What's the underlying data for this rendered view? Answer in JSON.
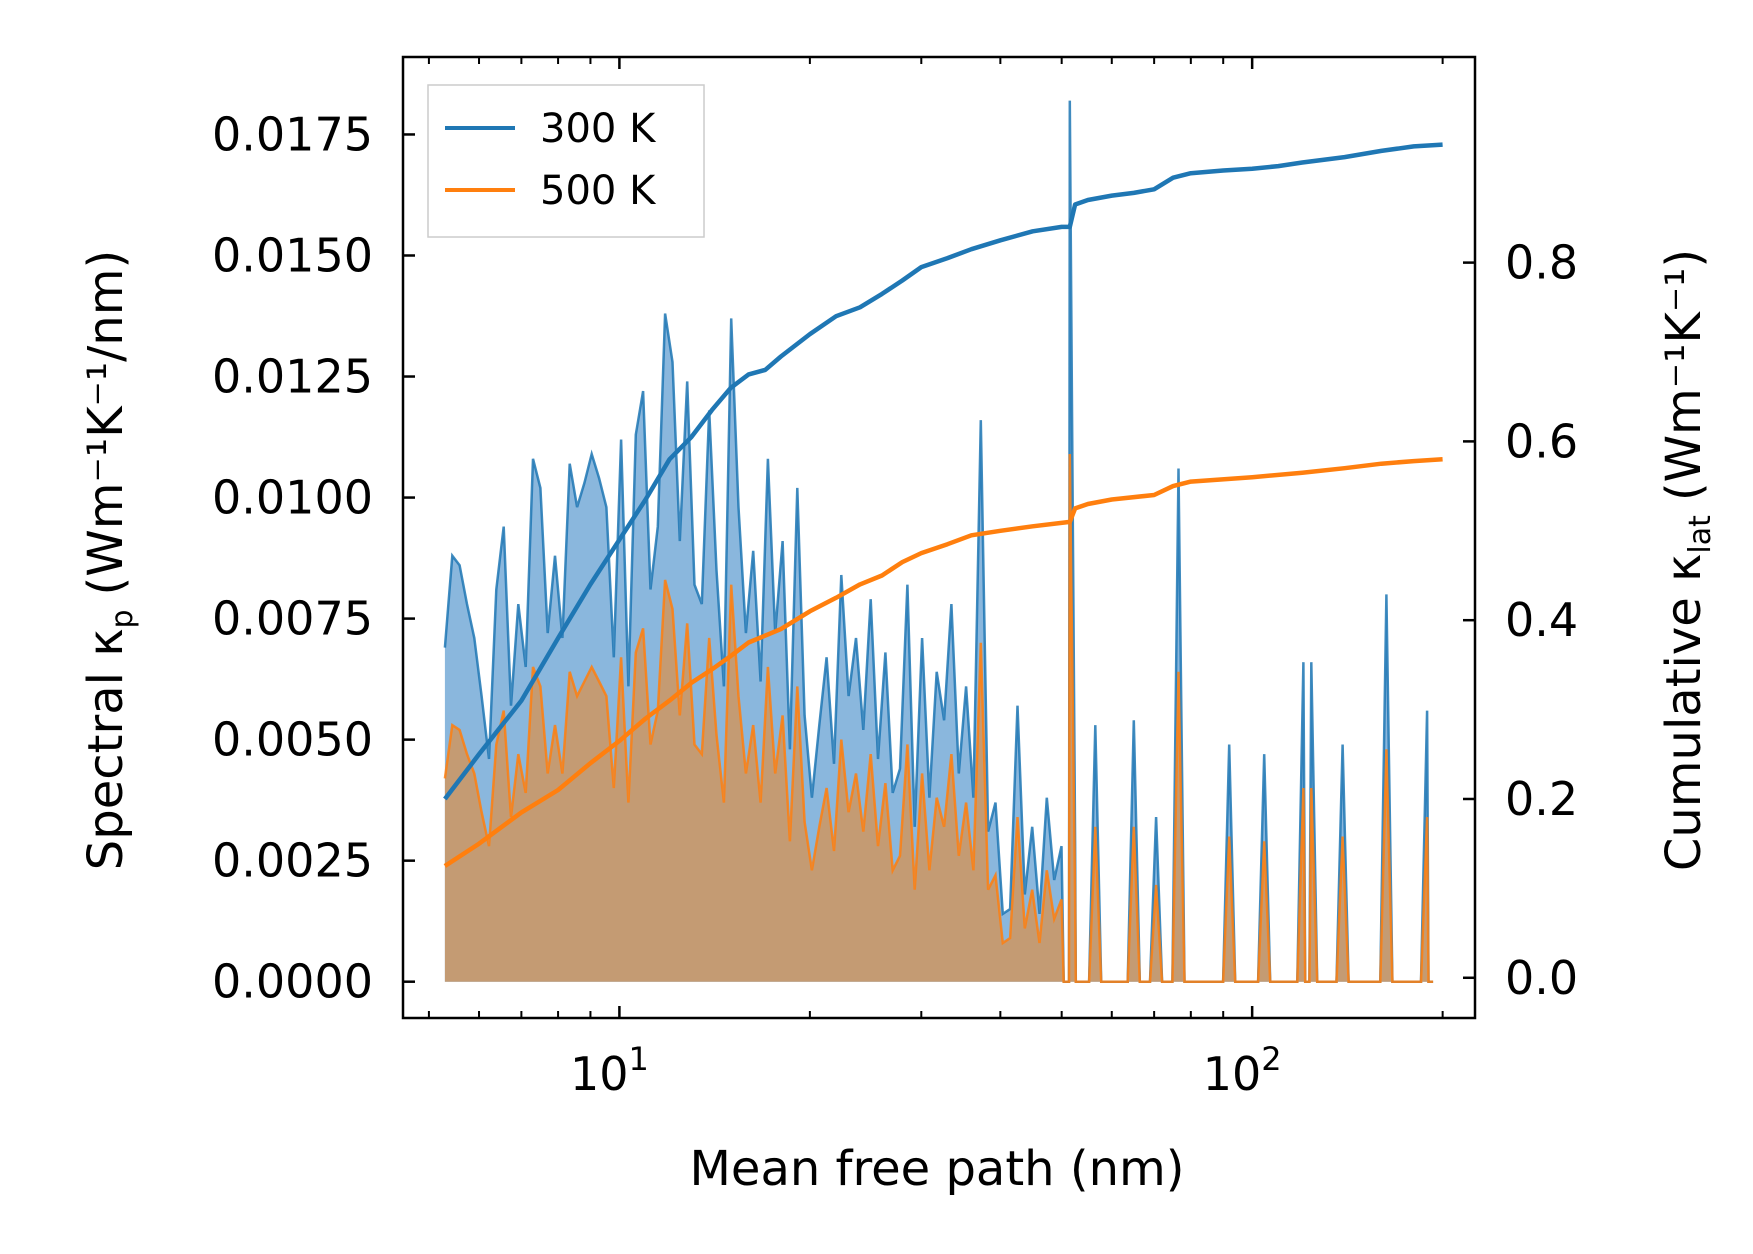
{
  "chart_data": {
    "type": "area",
    "title": "",
    "xlabel": "Mean free path (nm)",
    "ylabel_left": {
      "main": "Spectral κ",
      "sub": "p",
      "unit": "(Wm⁻¹K⁻¹/nm)"
    },
    "ylabel_right": {
      "main": "Cumulative κ",
      "sub": "lat",
      "unit": "(Wm⁻¹K⁻¹)"
    },
    "xscale": "log",
    "xlim": [
      4.55,
      225
    ],
    "ylim_left": [
      -0.00075,
      0.0191
    ],
    "ylim_right": [
      -0.045,
      1.03
    ],
    "x_ticks": [
      {
        "value": 10,
        "base": "10",
        "exp": "1"
      },
      {
        "value": 100,
        "base": "10",
        "exp": "2"
      }
    ],
    "y_ticks_left": [
      "0.0000",
      "0.0025",
      "0.0050",
      "0.0075",
      "0.0100",
      "0.0125",
      "0.0150",
      "0.0175"
    ],
    "y_ticks_right": [
      "0.0",
      "0.2",
      "0.4",
      "0.6",
      "0.8"
    ],
    "legend": {
      "position": "top-left",
      "entries": [
        "300 K",
        "500 K"
      ]
    },
    "colors": {
      "s300": "#1f77b4",
      "s500": "#ff7f0e",
      "fill300": "#8ab7dd",
      "fill500": "#c49b73"
    },
    "spectral_x_range": [
      5.3,
      190
    ],
    "spectral_300K": [
      0.0069,
      0.0088,
      0.0086,
      0.0078,
      0.0071,
      0.0059,
      0.0046,
      0.0081,
      0.0094,
      0.0057,
      0.0078,
      0.0065,
      0.0108,
      0.0102,
      0.0072,
      0.0088,
      0.0071,
      0.0107,
      0.0098,
      0.0103,
      0.0109,
      0.0104,
      0.0098,
      0.0067,
      0.0112,
      0.0061,
      0.0113,
      0.0122,
      0.0081,
      0.0094,
      0.0138,
      0.0128,
      0.0091,
      0.0124,
      0.0082,
      0.0078,
      0.0118,
      0.0085,
      0.0061,
      0.0137,
      0.0098,
      0.0072,
      0.0089,
      0.0062,
      0.0108,
      0.0072,
      0.0091,
      0.0048,
      0.0102,
      0.0055,
      0.0038,
      0.0053,
      0.0067,
      0.0045,
      0.0084,
      0.0059,
      0.0071,
      0.0052,
      0.0079,
      0.0046,
      0.0068,
      0.0039,
      0.0044,
      0.0082,
      0.0032,
      0.0071,
      0.0038,
      0.0064,
      0.0054,
      0.0078,
      0.0043,
      0.0061,
      0.0038,
      0.0116,
      0.0031,
      0.0037,
      0.0014,
      0.0015,
      0.0057,
      0.0018,
      0.0032,
      0.0014,
      0.0038,
      0.0021,
      0.0028,
      0.0034,
      0.0038,
      0.0008,
      0.0048,
      0.0015,
      0.0057,
      0.0026,
      0.0035,
      0.0,
      0.0,
      0.0051,
      0.0018,
      0.0,
      0.0031,
      0.0014,
      0.0182,
      0.0032,
      0.0,
      0.0053,
      0.0029,
      0.0,
      0.0,
      0.0056,
      0.0,
      0.0,
      0.0034,
      0.0,
      0.0,
      0.0,
      0.0,
      0.0,
      0.0,
      0.0,
      0.0,
      0.0,
      0.0,
      0.0,
      0.0,
      0.0,
      0.0,
      0.0,
      0.0,
      0.0,
      0.0,
      0.0,
      0.0,
      0.0,
      0.0,
      0.0,
      0.0
    ],
    "spectral_500K": [
      0.0042,
      0.0053,
      0.0052,
      0.0047,
      0.0043,
      0.0035,
      0.0028,
      0.0049,
      0.0056,
      0.0034,
      0.0047,
      0.0039,
      0.0065,
      0.0061,
      0.0043,
      0.0053,
      0.0043,
      0.0064,
      0.0059,
      0.0062,
      0.0065,
      0.0062,
      0.0059,
      0.004,
      0.0067,
      0.0037,
      0.0068,
      0.0073,
      0.0049,
      0.0056,
      0.0083,
      0.0077,
      0.0055,
      0.0074,
      0.0049,
      0.0047,
      0.0071,
      0.0051,
      0.0037,
      0.0082,
      0.0059,
      0.0043,
      0.0053,
      0.0037,
      0.0065,
      0.0043,
      0.0055,
      0.0029,
      0.0061,
      0.0033,
      0.0023,
      0.0032,
      0.004,
      0.0027,
      0.005,
      0.0035,
      0.0043,
      0.0031,
      0.0047,
      0.0028,
      0.0041,
      0.0023,
      0.0026,
      0.0049,
      0.0019,
      0.0043,
      0.0023,
      0.0038,
      0.0032,
      0.0047,
      0.0026,
      0.0037,
      0.0023,
      0.007,
      0.0019,
      0.0022,
      0.0008,
      0.0009,
      0.0034,
      0.0011,
      0.0019,
      0.0008,
      0.0023,
      0.0013,
      0.0017,
      0.002,
      0.0023,
      0.0005,
      0.0029,
      0.0009,
      0.0034,
      0.0016,
      0.0021,
      0.0,
      0.0,
      0.0031,
      0.0011,
      0.0,
      0.0019,
      0.0008,
      0.0109,
      0.0019,
      0.0,
      0.0032,
      0.0017,
      0.0,
      0.0,
      0.0034,
      0.0,
      0.0,
      0.002,
      0.0,
      0.0,
      0.0,
      0.0,
      0.0,
      0.0,
      0.0,
      0.0,
      0.0,
      0.0,
      0.0,
      0.0,
      0.0,
      0.0,
      0.0,
      0.0,
      0.0,
      0.0,
      0.0,
      0.0,
      0.0,
      0.0,
      0.0,
      0.0
    ],
    "spikes": [
      {
        "x": 51.5,
        "y300": 0.0182,
        "y500": 0.0109
      },
      {
        "x": 52.5,
        "y300": 0.0029,
        "y500": 0.0017
      },
      {
        "x": 56.5,
        "y300": 0.0053,
        "y500": 0.0032
      },
      {
        "x": 61.5,
        "y300": 0.0,
        "y500": 0.0
      },
      {
        "x": 65.0,
        "y300": 0.0054,
        "y500": 0.0032
      },
      {
        "x": 70.5,
        "y300": 0.0034,
        "y500": 0.002
      },
      {
        "x": 76.5,
        "y300": 0.0106,
        "y500": 0.0064
      },
      {
        "x": 92.0,
        "y300": 0.0049,
        "y500": 0.003
      },
      {
        "x": 104.5,
        "y300": 0.0047,
        "y500": 0.0029
      },
      {
        "x": 120.5,
        "y300": 0.0066,
        "y500": 0.004
      },
      {
        "x": 124.0,
        "y300": 0.0066,
        "y500": 0.004
      },
      {
        "x": 139.0,
        "y300": 0.0049,
        "y500": 0.003
      },
      {
        "x": 163.0,
        "y300": 0.008,
        "y500": 0.0048
      },
      {
        "x": 189.0,
        "y300": 0.0056,
        "y500": 0.0034
      }
    ],
    "cumulative_300K": [
      [
        5.3,
        0.2
      ],
      [
        6,
        0.25
      ],
      [
        7,
        0.31
      ],
      [
        8,
        0.38
      ],
      [
        9,
        0.44
      ],
      [
        10,
        0.49
      ],
      [
        11,
        0.535
      ],
      [
        12,
        0.58
      ],
      [
        13,
        0.605
      ],
      [
        14,
        0.635
      ],
      [
        15,
        0.66
      ],
      [
        16,
        0.675
      ],
      [
        17,
        0.68
      ],
      [
        18,
        0.695
      ],
      [
        20,
        0.72
      ],
      [
        22,
        0.74
      ],
      [
        24,
        0.75
      ],
      [
        26,
        0.765
      ],
      [
        28,
        0.78
      ],
      [
        30,
        0.795
      ],
      [
        33,
        0.805
      ],
      [
        36,
        0.815
      ],
      [
        40,
        0.825
      ],
      [
        45,
        0.835
      ],
      [
        50,
        0.84
      ],
      [
        51.5,
        0.84
      ],
      [
        52.5,
        0.865
      ],
      [
        55,
        0.87
      ],
      [
        60,
        0.875
      ],
      [
        65,
        0.878
      ],
      [
        70,
        0.882
      ],
      [
        75,
        0.895
      ],
      [
        80,
        0.9
      ],
      [
        90,
        0.903
      ],
      [
        100,
        0.905
      ],
      [
        110,
        0.908
      ],
      [
        120,
        0.912
      ],
      [
        140,
        0.918
      ],
      [
        160,
        0.925
      ],
      [
        180,
        0.93
      ],
      [
        200,
        0.932
      ]
    ],
    "cumulative_500K": [
      [
        5.3,
        0.125
      ],
      [
        6,
        0.15
      ],
      [
        7,
        0.185
      ],
      [
        8,
        0.21
      ],
      [
        9,
        0.24
      ],
      [
        10,
        0.265
      ],
      [
        11,
        0.29
      ],
      [
        12,
        0.31
      ],
      [
        13,
        0.33
      ],
      [
        14,
        0.345
      ],
      [
        15,
        0.36
      ],
      [
        16,
        0.375
      ],
      [
        18,
        0.39
      ],
      [
        20,
        0.41
      ],
      [
        22,
        0.425
      ],
      [
        24,
        0.44
      ],
      [
        26,
        0.45
      ],
      [
        28,
        0.465
      ],
      [
        30,
        0.475
      ],
      [
        33,
        0.485
      ],
      [
        36,
        0.495
      ],
      [
        40,
        0.5
      ],
      [
        45,
        0.505
      ],
      [
        51.5,
        0.51
      ],
      [
        52.5,
        0.525
      ],
      [
        55,
        0.53
      ],
      [
        60,
        0.535
      ],
      [
        70,
        0.54
      ],
      [
        75,
        0.55
      ],
      [
        80,
        0.555
      ],
      [
        100,
        0.56
      ],
      [
        120,
        0.565
      ],
      [
        140,
        0.57
      ],
      [
        160,
        0.575
      ],
      [
        180,
        0.578
      ],
      [
        200,
        0.58
      ]
    ]
  }
}
